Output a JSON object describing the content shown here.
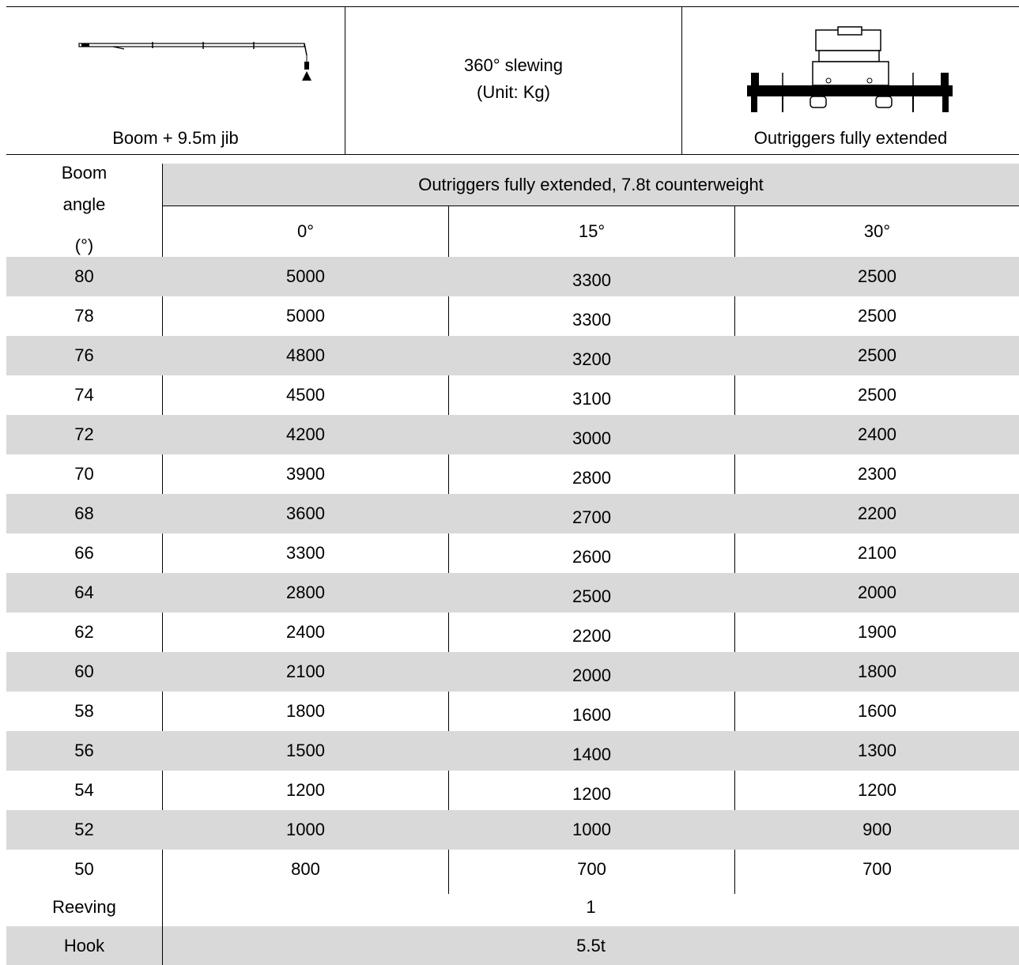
{
  "header": {
    "left_caption": "Boom + 9.5m jib",
    "center_line1": "360° slewing",
    "center_line2": "(Unit: Kg)",
    "right_caption": "Outriggers fully extended",
    "left_icon": "crane-boom-jib-diagram",
    "right_icon": "crane-outriggers-diagram"
  },
  "table": {
    "row_header_label": [
      "Boom",
      "angle",
      "(°)"
    ],
    "group_header": "Outriggers fully extended, 7.8t counterweight",
    "columns": [
      "0°",
      "15°",
      "30°"
    ],
    "rows": [
      {
        "angle": "80",
        "values": [
          "5000",
          "3300",
          "2500"
        ]
      },
      {
        "angle": "78",
        "values": [
          "5000",
          "3300",
          "2500"
        ]
      },
      {
        "angle": "76",
        "values": [
          "4800",
          "3200",
          "2500"
        ]
      },
      {
        "angle": "74",
        "values": [
          "4500",
          "3100",
          "2500"
        ]
      },
      {
        "angle": "72",
        "values": [
          "4200",
          "3000",
          "2400"
        ]
      },
      {
        "angle": "70",
        "values": [
          "3900",
          "2800",
          "2300"
        ]
      },
      {
        "angle": "68",
        "values": [
          "3600",
          "2700",
          "2200"
        ]
      },
      {
        "angle": "66",
        "values": [
          "3300",
          "2600",
          "2100"
        ]
      },
      {
        "angle": "64",
        "values": [
          "2800",
          "2500",
          "2000"
        ]
      },
      {
        "angle": "62",
        "values": [
          "2400",
          "2200",
          "1900"
        ]
      },
      {
        "angle": "60",
        "values": [
          "2100",
          "2000",
          "1800"
        ]
      },
      {
        "angle": "58",
        "values": [
          "1800",
          "1600",
          "1600"
        ]
      },
      {
        "angle": "56",
        "values": [
          "1500",
          "1400",
          "1300"
        ]
      },
      {
        "angle": "54",
        "values": [
          "1200",
          "1200",
          "1200"
        ]
      },
      {
        "angle": "52",
        "values": [
          "1000",
          "1000",
          "900"
        ]
      },
      {
        "angle": "50",
        "values": [
          "800",
          "700",
          "700"
        ]
      }
    ],
    "reeving_label": "Reeving",
    "reeving_value": "1",
    "hook_label": "Hook",
    "hook_value": "5.5t"
  },
  "colors": {
    "stripe": "#d9d9d9",
    "line": "#000000"
  }
}
